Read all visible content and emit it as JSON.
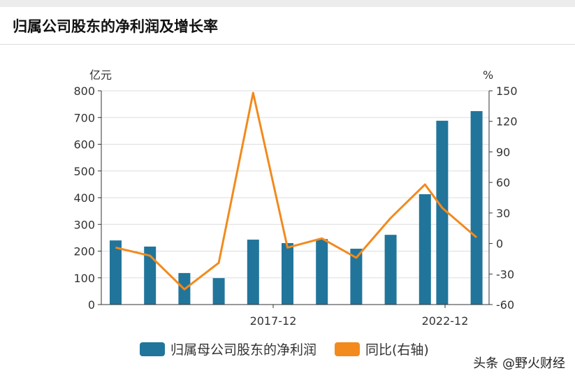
{
  "title": "归属公司股东的净利润及增长率",
  "watermark": "头条 @野火财经",
  "chart_data": {
    "type": "bar+line",
    "x": [
      "2013-05",
      "2014-05",
      "2015-05",
      "2016-05",
      "2017-05",
      "2018-05",
      "2019-05",
      "2020-05",
      "2021-05",
      "2022-05",
      "2022-11",
      "2023-11"
    ],
    "xticks": [
      "2017-12",
      "2022-12"
    ],
    "ylabel_left": "亿元",
    "ylabel_right": "%",
    "ylim_left": [
      0,
      800
    ],
    "yticks_left": [
      0,
      100,
      200,
      300,
      400,
      500,
      600,
      700,
      800
    ],
    "ylim_right": [
      -60,
      150
    ],
    "yticks_right": [
      -60,
      -30,
      0,
      30,
      60,
      90,
      120,
      150
    ],
    "grid": true,
    "legend": "bottom",
    "series": [
      {
        "name": "归属母公司股东的净利润",
        "type": "bar",
        "axis": "left",
        "color": "#21759b",
        "values": [
          240,
          217,
          118,
          99,
          243,
          230,
          245,
          209,
          261,
          413,
          688,
          724
        ]
      },
      {
        "name": "同比(右轴)",
        "type": "line",
        "axis": "right",
        "color": "#f28a1d",
        "values": [
          -4,
          -12,
          -45,
          -19,
          148,
          -4,
          5,
          -14,
          25,
          58,
          35,
          6
        ]
      }
    ]
  }
}
